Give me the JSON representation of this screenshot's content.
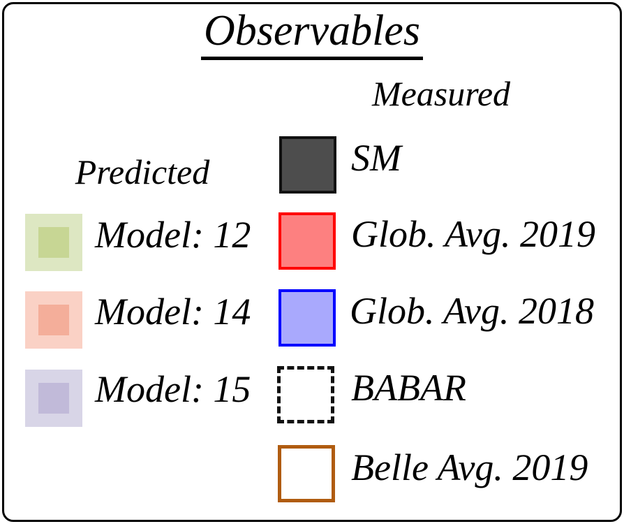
{
  "title": "Observables",
  "columns": {
    "predicted": {
      "header": "Predicted",
      "items": [
        {
          "label": "Model: 12",
          "swatch_outer": {
            "fill": "#dde7c2"
          },
          "swatch_inner": {
            "fill": "#c7d694"
          }
        },
        {
          "label": "Model: 14",
          "swatch_outer": {
            "fill": "#fad1c5"
          },
          "swatch_inner": {
            "fill": "#f4ae9a"
          }
        },
        {
          "label": "Model: 15",
          "swatch_outer": {
            "fill": "#d8d5e7"
          },
          "swatch_inner": {
            "fill": "#c1bad9"
          }
        }
      ]
    },
    "measured": {
      "header": "Measured",
      "items": [
        {
          "label": "SM",
          "swatch": {
            "fill": "#4d4d4d",
            "border_color": "#111111",
            "border_style": "solid"
          }
        },
        {
          "label": "Glob. Avg. 2019",
          "swatch": {
            "fill": "#fd8080",
            "border_color": "#ff0000",
            "border_style": "solid"
          }
        },
        {
          "label": "Glob. Avg. 2018",
          "swatch": {
            "fill": "#a9a9fd",
            "border_color": "#0000ff",
            "border_style": "solid"
          }
        },
        {
          "label": "BABAR",
          "swatch": {
            "fill": "#ffffff",
            "border_color": "#111111",
            "border_style": "dashed"
          }
        },
        {
          "label": "Belle Avg. 2019",
          "swatch": {
            "fill": "#ffffff",
            "border_color": "#b05c10",
            "border_style": "solid"
          }
        }
      ]
    }
  }
}
